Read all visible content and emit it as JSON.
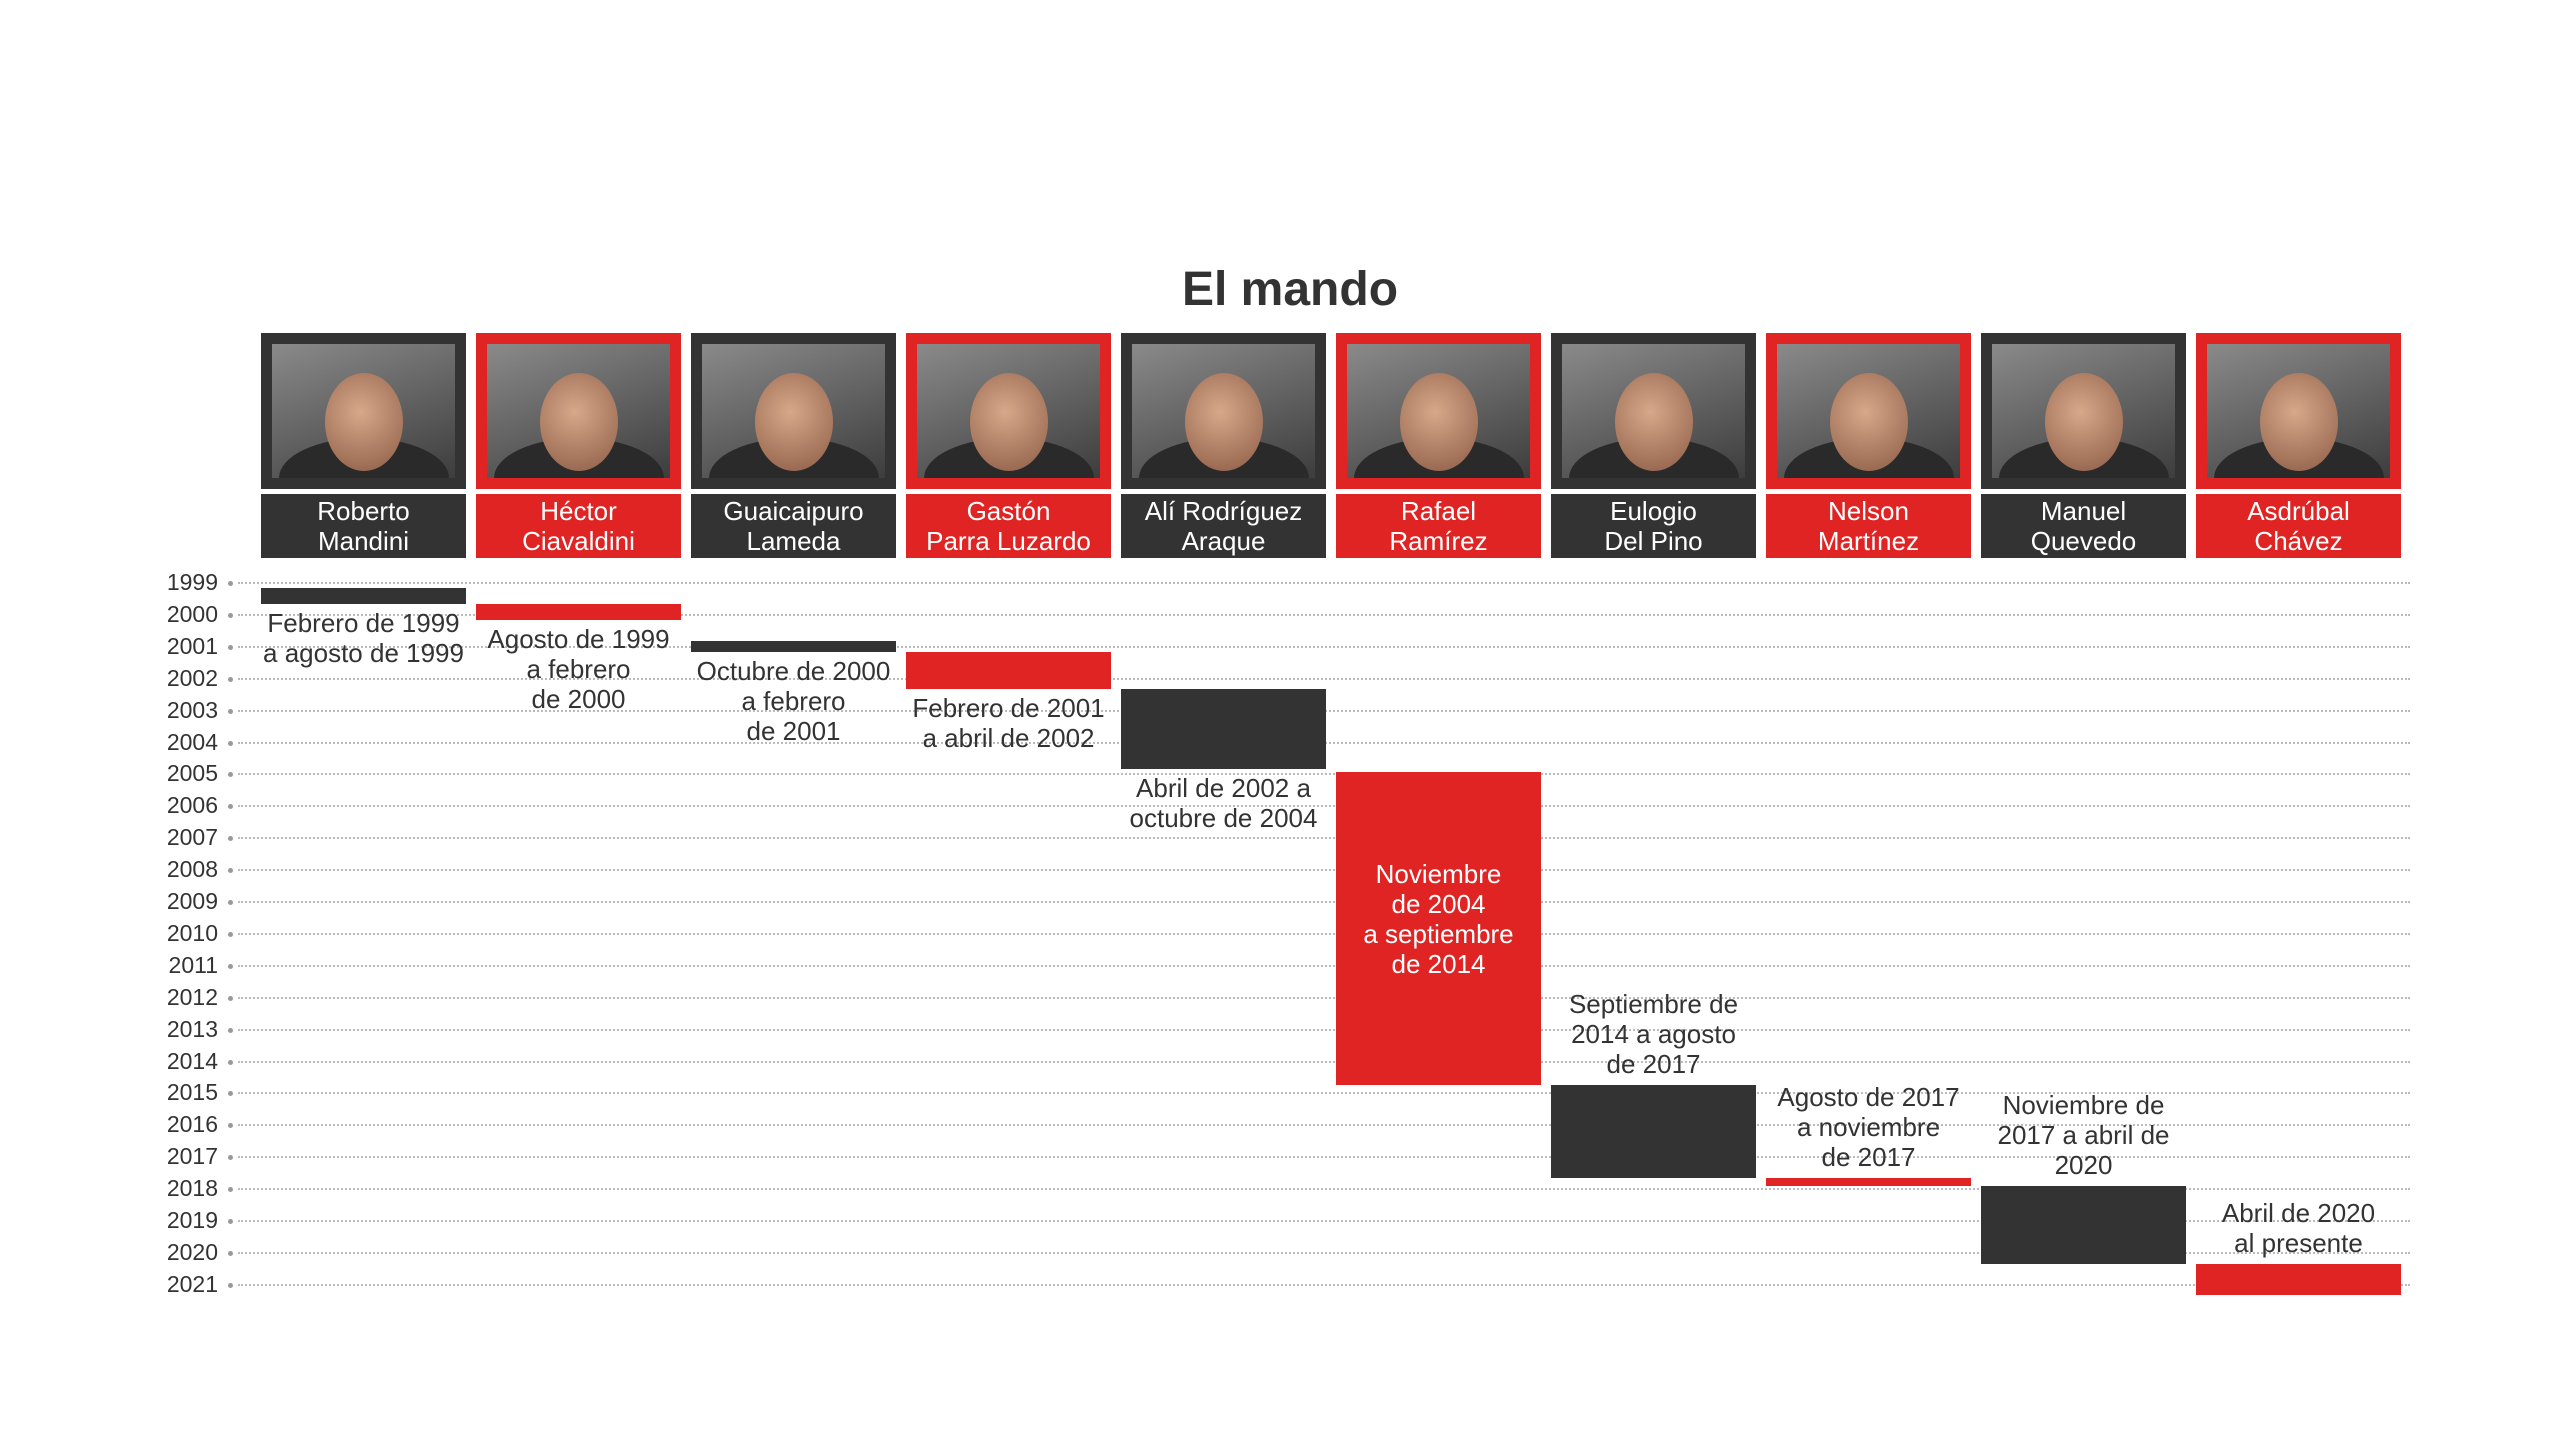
{
  "chart_data": {
    "type": "timeline",
    "title": "El mando",
    "y_axis": {
      "ticks": [
        "1999",
        "2000",
        "2001",
        "2002",
        "2003",
        "2004",
        "2005",
        "2006",
        "2007",
        "2008",
        "2009",
        "2010",
        "2011",
        "2012",
        "2013",
        "2014",
        "2015",
        "2016",
        "2017",
        "2018",
        "2019",
        "2020",
        "2021"
      ],
      "range": [
        1999,
        2021
      ],
      "grid": true,
      "direction": "downward"
    },
    "colors": {
      "dark": "#333333",
      "red": "#e02424"
    },
    "series": [
      {
        "name": "Roberto\nMandini",
        "start": "1999-02",
        "end": "1999-08",
        "color": "dark",
        "label": "Febrero de 1999\na agosto de 1999"
      },
      {
        "name": "Héctor\nCiavaldini",
        "start": "1999-08",
        "end": "2000-02",
        "color": "red",
        "label": "Agosto de 1999\na febrero\nde 2000"
      },
      {
        "name": "Guaicaipuro\nLameda",
        "start": "2000-10",
        "end": "2001-02",
        "color": "dark",
        "label": "Octubre de 2000\na febrero\nde 2001"
      },
      {
        "name": "Gastón\nParra Luzardo",
        "start": "2001-02",
        "end": "2002-04",
        "color": "red",
        "label": "Febrero de 2001\na abril de 2002"
      },
      {
        "name": "Alí Rodríguez\nAraque",
        "start": "2002-04",
        "end": "2004-10",
        "color": "dark",
        "label": "Abril de 2002 a\noctubre de 2004"
      },
      {
        "name": "Rafael\nRamírez",
        "start": "2004-11",
        "end": "2014-09",
        "color": "red",
        "label": "Noviembre\nde 2004\na septiembre\nde 2014"
      },
      {
        "name": "Eulogio\nDel Pino",
        "start": "2014-09",
        "end": "2017-08",
        "color": "dark",
        "label": "Septiembre de\n2014 a agosto\nde 2017"
      },
      {
        "name": "Nelson\nMartínez",
        "start": "2017-08",
        "end": "2017-11",
        "color": "red",
        "label": "Agosto de 2017\na noviembre\nde 2017"
      },
      {
        "name": "Manuel\nQuevedo",
        "start": "2017-11",
        "end": "2020-04",
        "color": "dark",
        "label": "Noviembre de\n2017 a abril de\n2020"
      },
      {
        "name": "Asdrúbal\nChávez",
        "start": "2020-04",
        "end": "present",
        "color": "red",
        "label": "Abril de 2020\nal presente"
      }
    ]
  }
}
